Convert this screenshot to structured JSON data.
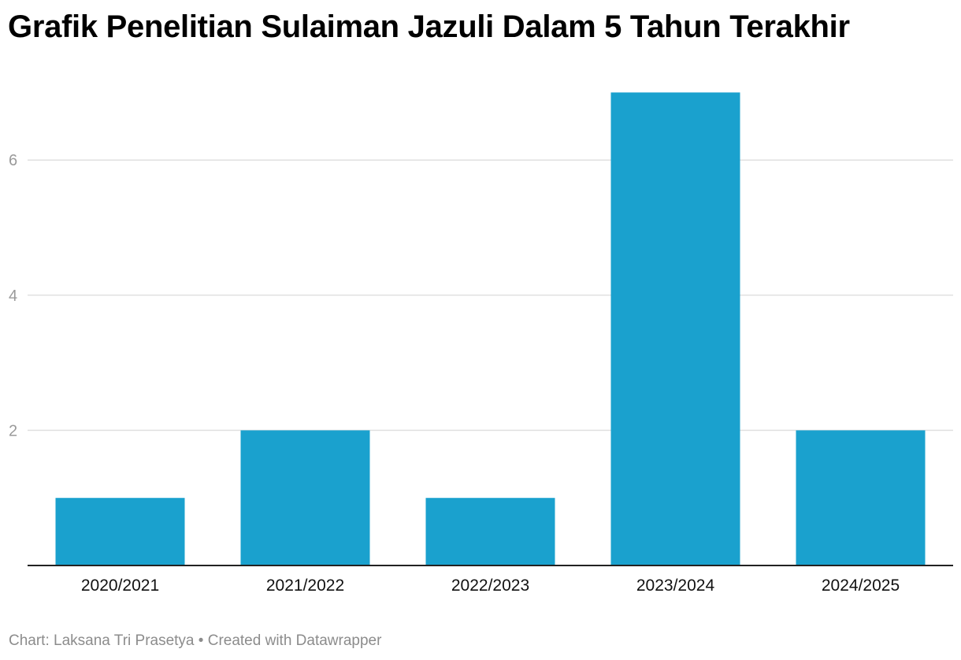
{
  "chart_data": {
    "type": "bar",
    "title": "Grafik Penelitian Sulaiman Jazuli Dalam 5 Tahun Terakhir",
    "categories": [
      "2020/2021",
      "2021/2022",
      "2022/2023",
      "2023/2024",
      "2024/2025"
    ],
    "values": [
      1,
      2,
      1,
      7,
      2
    ],
    "ylim": [
      0,
      7
    ],
    "yticks": [
      2,
      4,
      6
    ],
    "grid": true,
    "bar_color": "#1aa1ce"
  },
  "footer": {
    "credit": "Chart: Laksana Tri Prasetya",
    "separator": " • ",
    "tool": "Created with Datawrapper"
  }
}
